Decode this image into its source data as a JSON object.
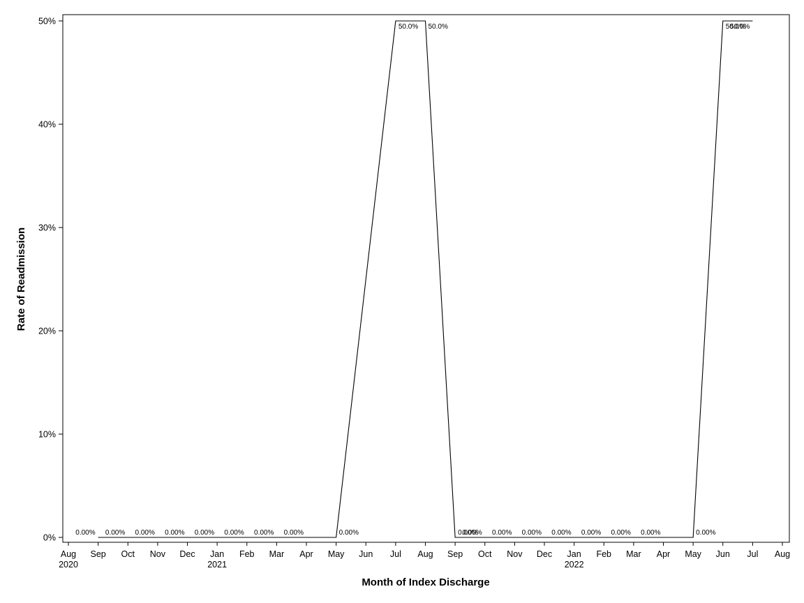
{
  "chart_data": {
    "type": "line",
    "title": "",
    "xlabel": "Month of Index Discharge",
    "ylabel": "Rate of Readmission",
    "ylim": [
      0,
      50
    ],
    "yticks": [
      0,
      10,
      20,
      30,
      40,
      50
    ],
    "ytick_labels": [
      "0%",
      "10%",
      "20%",
      "30%",
      "40%",
      "50%"
    ],
    "grid": false,
    "legend": "none",
    "line_color": "#000000",
    "x_axis": {
      "months": [
        "Aug",
        "Sep",
        "Oct",
        "Nov",
        "Dec",
        "Jan",
        "Feb",
        "Mar",
        "Apr",
        "May",
        "Jun",
        "Jul",
        "Aug",
        "Sep",
        "Oct",
        "Nov",
        "Dec",
        "Jan",
        "Feb",
        "Mar",
        "Apr",
        "May",
        "Jun",
        "Jul",
        "Aug"
      ],
      "dates": [
        "2020-08",
        "2020-09",
        "2020-10",
        "2020-11",
        "2020-12",
        "2021-01",
        "2021-02",
        "2021-03",
        "2021-04",
        "2021-05",
        "2021-06",
        "2021-07",
        "2021-08",
        "2021-09",
        "2021-10",
        "2021-11",
        "2021-12",
        "2022-01",
        "2022-02",
        "2022-03",
        "2022-04",
        "2022-05",
        "2022-06",
        "2022-07",
        "2022-08"
      ],
      "year_labels": [
        {
          "date": "2020-08",
          "label": "2020"
        },
        {
          "date": "2021-01",
          "label": "2021"
        },
        {
          "date": "2022-01",
          "label": "2022"
        }
      ]
    },
    "series": [
      {
        "x": [
          "2020-09",
          "2020-10",
          "2020-11",
          "2020-12",
          "2021-01",
          "2021-02",
          "2021-03",
          "2021-04",
          "2021-05",
          "2021-07",
          "2021-08",
          "2021-09",
          "2021-10",
          "2021-11",
          "2021-12",
          "2022-01",
          "2022-02",
          "2022-03",
          "2022-04",
          "2022-05",
          "2022-06",
          "2022-07"
        ],
        "values": [
          0,
          0,
          0,
          0,
          0,
          0,
          0,
          0,
          0,
          50,
          50,
          0,
          0,
          0,
          0,
          0,
          0,
          0,
          0,
          0,
          50,
          50
        ],
        "labels": [
          "0.00%",
          "0.00%",
          "0.00%",
          "0.00%",
          "0.00%",
          "0.00%",
          "0.00%",
          "0.00%",
          "0.00%",
          "50.0%",
          "50.0%",
          "0.00%",
          "0.00%",
          "0.00%",
          "0.00%",
          "0.00%",
          "0.00%",
          "0.00%",
          "0.00%",
          "0.00%",
          "50.0%",
          "50.0%"
        ]
      }
    ]
  }
}
